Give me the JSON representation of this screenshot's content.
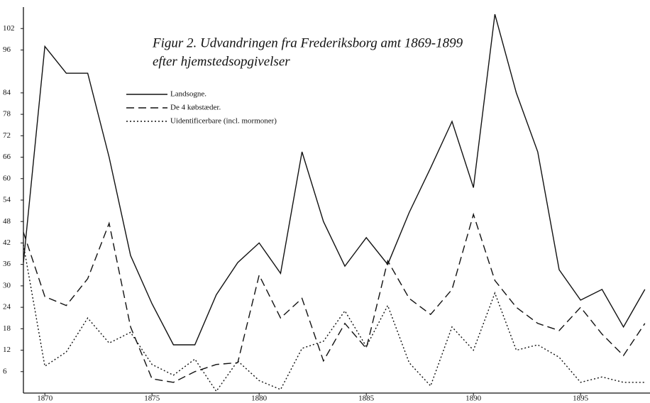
{
  "chart_data": {
    "type": "line",
    "title": "Figur 2. Udvandringen fra Frederiksborg amt 1869-1899",
    "subtitle": "efter hjemstedsopgivelser",
    "x": [
      1869,
      1870,
      1871,
      1872,
      1873,
      1874,
      1875,
      1876,
      1877,
      1878,
      1879,
      1880,
      1881,
      1882,
      1883,
      1884,
      1885,
      1886,
      1887,
      1888,
      1889,
      1890,
      1891,
      1892,
      1893,
      1894,
      1895,
      1896,
      1897,
      1898
    ],
    "series": [
      {
        "name": "Landsogne.",
        "color": "#111111",
        "style": "solid",
        "values": [
          36.5,
          97,
          89.5,
          89.5,
          66,
          38.5,
          25,
          13.5,
          13.5,
          27.5,
          36.5,
          42,
          33.5,
          67.5,
          48,
          35.5,
          43.5,
          36,
          50.5,
          63,
          76,
          57.5,
          106,
          84,
          67.5,
          34.5,
          26,
          29,
          18.5,
          29
        ]
      },
      {
        "name": "De 4 købstæder.",
        "color": "#111111",
        "style": "dashed",
        "values": [
          45,
          27,
          24.5,
          32,
          47.5,
          18.5,
          4,
          3,
          6,
          8,
          8.5,
          33,
          21,
          26.5,
          9,
          19.5,
          12.5,
          37,
          26.5,
          22,
          29,
          50,
          31.5,
          24,
          19.5,
          17.5,
          24,
          16.5,
          10.5,
          19.5
        ]
      },
      {
        "name": "Uidentificerbare (incl. mormoner)",
        "color": "#111111",
        "style": "dotted",
        "values": [
          41.5,
          7.5,
          11.5,
          21,
          14,
          17,
          8,
          5,
          9.5,
          0.5,
          9,
          3.5,
          1,
          12.5,
          14.5,
          23,
          13,
          24.5,
          8.5,
          2,
          18.5,
          12,
          28,
          12,
          13.5,
          10,
          3,
          4.5,
          3,
          3
        ]
      }
    ],
    "xlim": [
      1869,
      1898.24
    ],
    "xticks": [
      1870,
      1875,
      1880,
      1885,
      1890,
      1895
    ],
    "ylim": [
      0,
      108
    ],
    "yticks": [
      6,
      12,
      18,
      24,
      30,
      36,
      42,
      48,
      54,
      60,
      66,
      72,
      78,
      84,
      96,
      102
    ]
  }
}
